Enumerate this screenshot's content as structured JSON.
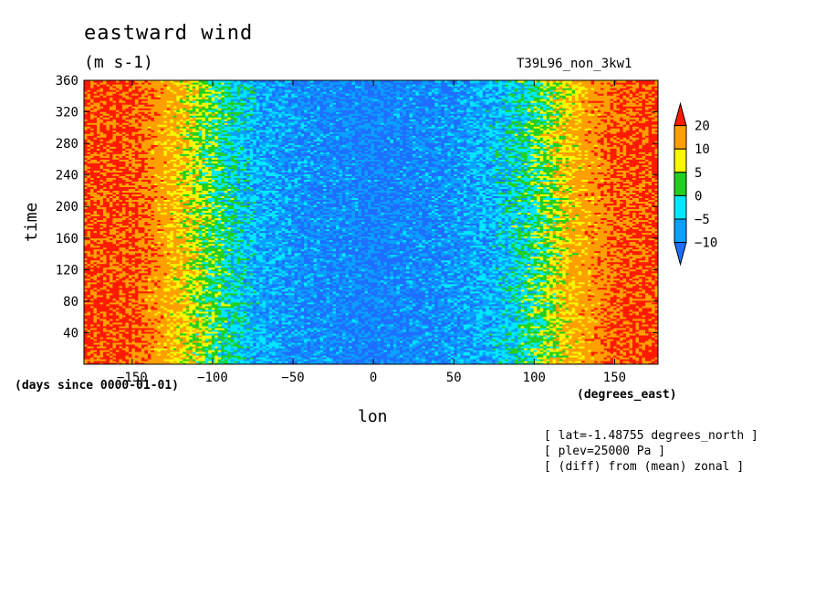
{
  "chart_data": {
    "type": "heatmap",
    "title": "eastward wind",
    "units": "(m s-1)",
    "run_id": "T39L96_non_3kw1",
    "xlabel": "lon",
    "ylabel": "time",
    "x_units": "(degrees_east)",
    "y_units": "(days since 0000-01-01)",
    "xlim": [
      -180,
      177
    ],
    "ylim": [
      0,
      360
    ],
    "x_ticks": [
      -150,
      -100,
      -50,
      0,
      50,
      100,
      150
    ],
    "y_ticks": [
      40,
      80,
      120,
      160,
      200,
      240,
      280,
      320,
      360
    ],
    "colorbar": {
      "levels": [
        -10,
        -5,
        0,
        5,
        10,
        20
      ],
      "colors": [
        "#1e6fff",
        "#0aa0ff",
        "#00e8ff",
        "#22d022",
        "#f8f800",
        "#ffa000",
        "#ff1a00"
      ]
    },
    "field_profile": {
      "lon": [
        -180,
        -150,
        -125,
        -100,
        -75,
        -50,
        0,
        50,
        75,
        100,
        125,
        150,
        177
      ],
      "mean_u": [
        22,
        21,
        12,
        2,
        -6,
        -9,
        -11,
        -9,
        -6,
        1,
        12,
        20,
        22
      ]
    },
    "notes": [
      "[ lat=-1.48755 degrees_north ]",
      "[ plev=25000 Pa ]",
      "[ (diff) from (mean) zonal ]"
    ]
  }
}
